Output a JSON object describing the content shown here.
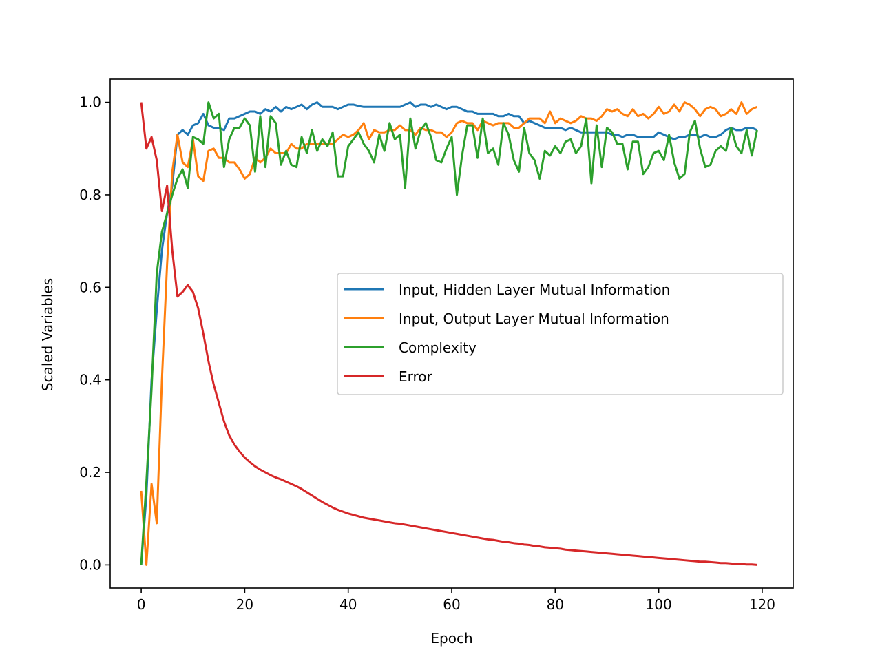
{
  "chart_data": {
    "type": "line",
    "xlabel": "Epoch",
    "ylabel": "Scaled Variables",
    "xlim": [
      -6,
      126
    ],
    "ylim": [
      -0.05,
      1.05
    ],
    "xticks": [
      0,
      20,
      40,
      60,
      80,
      100,
      120
    ],
    "yticks": [
      0.0,
      0.2,
      0.4,
      0.6,
      0.8,
      1.0
    ],
    "xtick_labels": [
      "0",
      "20",
      "40",
      "60",
      "80",
      "100",
      "120"
    ],
    "ytick_labels": [
      "0.0",
      "0.2",
      "0.4",
      "0.6",
      "0.8",
      "1.0"
    ],
    "grid": false,
    "legend_position": "center-right",
    "series": [
      {
        "name": "Input, Hidden Layer Mutual Information",
        "color": "#1f77b4",
        "values": [
          0.0,
          0.15,
          0.4,
          0.55,
          0.68,
          0.76,
          0.82,
          0.93,
          0.94,
          0.93,
          0.95,
          0.955,
          0.975,
          0.95,
          0.945,
          0.945,
          0.94,
          0.965,
          0.965,
          0.97,
          0.975,
          0.98,
          0.98,
          0.975,
          0.985,
          0.98,
          0.99,
          0.98,
          0.99,
          0.985,
          0.99,
          0.995,
          0.985,
          0.995,
          1.0,
          0.99,
          0.99,
          0.99,
          0.985,
          0.99,
          0.995,
          0.995,
          0.992,
          0.99,
          0.99,
          0.99,
          0.99,
          0.99,
          0.99,
          0.99,
          0.99,
          0.995,
          1.0,
          0.99,
          0.995,
          0.995,
          0.99,
          0.995,
          0.99,
          0.985,
          0.99,
          0.99,
          0.985,
          0.98,
          0.98,
          0.975,
          0.975,
          0.975,
          0.975,
          0.97,
          0.97,
          0.975,
          0.97,
          0.97,
          0.955,
          0.96,
          0.955,
          0.95,
          0.945,
          0.945,
          0.945,
          0.945,
          0.94,
          0.945,
          0.94,
          0.935,
          0.935,
          0.935,
          0.935,
          0.935,
          0.935,
          0.93,
          0.93,
          0.925,
          0.93,
          0.93,
          0.925,
          0.925,
          0.925,
          0.925,
          0.935,
          0.93,
          0.925,
          0.92,
          0.925,
          0.925,
          0.93,
          0.93,
          0.925,
          0.93,
          0.925,
          0.925,
          0.93,
          0.94,
          0.945,
          0.94,
          0.94,
          0.945,
          0.945,
          0.94
        ]
      },
      {
        "name": "Input, Output Layer Mutual Information",
        "color": "#ff7f0e",
        "values": [
          0.16,
          0.0,
          0.175,
          0.09,
          0.4,
          0.65,
          0.85,
          0.93,
          0.87,
          0.86,
          0.92,
          0.84,
          0.83,
          0.895,
          0.9,
          0.88,
          0.88,
          0.87,
          0.87,
          0.855,
          0.835,
          0.845,
          0.88,
          0.87,
          0.88,
          0.9,
          0.89,
          0.89,
          0.89,
          0.91,
          0.9,
          0.9,
          0.91,
          0.91,
          0.91,
          0.91,
          0.91,
          0.91,
          0.92,
          0.93,
          0.925,
          0.93,
          0.94,
          0.955,
          0.92,
          0.94,
          0.935,
          0.935,
          0.94,
          0.94,
          0.95,
          0.94,
          0.94,
          0.93,
          0.945,
          0.94,
          0.94,
          0.935,
          0.935,
          0.925,
          0.935,
          0.955,
          0.96,
          0.955,
          0.955,
          0.94,
          0.96,
          0.955,
          0.95,
          0.955,
          0.955,
          0.955,
          0.945,
          0.945,
          0.955,
          0.965,
          0.965,
          0.965,
          0.955,
          0.98,
          0.955,
          0.965,
          0.96,
          0.955,
          0.96,
          0.97,
          0.965,
          0.965,
          0.96,
          0.97,
          0.985,
          0.98,
          0.985,
          0.975,
          0.97,
          0.985,
          0.97,
          0.975,
          0.965,
          0.975,
          0.99,
          0.975,
          0.98,
          0.995,
          0.98,
          1.0,
          0.995,
          0.985,
          0.97,
          0.985,
          0.99,
          0.985,
          0.97,
          0.975,
          0.985,
          0.975,
          1.0,
          0.975,
          0.985,
          0.99
        ]
      },
      {
        "name": "Complexity",
        "color": "#2ca02c",
        "values": [
          0.0,
          0.18,
          0.38,
          0.63,
          0.72,
          0.76,
          0.8,
          0.835,
          0.855,
          0.815,
          0.925,
          0.92,
          0.91,
          1.0,
          0.965,
          0.975,
          0.86,
          0.92,
          0.945,
          0.945,
          0.965,
          0.95,
          0.85,
          0.97,
          0.86,
          0.97,
          0.955,
          0.865,
          0.895,
          0.865,
          0.86,
          0.925,
          0.89,
          0.94,
          0.895,
          0.92,
          0.905,
          0.935,
          0.84,
          0.84,
          0.905,
          0.92,
          0.935,
          0.91,
          0.895,
          0.87,
          0.93,
          0.895,
          0.955,
          0.92,
          0.93,
          0.815,
          0.965,
          0.9,
          0.94,
          0.955,
          0.925,
          0.875,
          0.87,
          0.9,
          0.925,
          0.8,
          0.885,
          0.95,
          0.95,
          0.88,
          0.965,
          0.89,
          0.9,
          0.865,
          0.955,
          0.93,
          0.875,
          0.85,
          0.945,
          0.89,
          0.875,
          0.835,
          0.895,
          0.885,
          0.905,
          0.89,
          0.915,
          0.92,
          0.89,
          0.905,
          0.965,
          0.825,
          0.95,
          0.86,
          0.945,
          0.935,
          0.91,
          0.91,
          0.855,
          0.915,
          0.915,
          0.845,
          0.86,
          0.89,
          0.895,
          0.875,
          0.93,
          0.87,
          0.835,
          0.845,
          0.935,
          0.96,
          0.9,
          0.86,
          0.865,
          0.895,
          0.905,
          0.895,
          0.945,
          0.905,
          0.89,
          0.94,
          0.885,
          0.94
        ]
      },
      {
        "name": "Error",
        "color": "#d62728",
        "values": [
          1.0,
          0.9,
          0.925,
          0.875,
          0.765,
          0.82,
          0.68,
          0.58,
          0.59,
          0.605,
          0.59,
          0.555,
          0.5,
          0.44,
          0.39,
          0.35,
          0.31,
          0.28,
          0.26,
          0.245,
          0.232,
          0.222,
          0.213,
          0.206,
          0.2,
          0.194,
          0.189,
          0.185,
          0.18,
          0.175,
          0.17,
          0.164,
          0.157,
          0.15,
          0.143,
          0.136,
          0.13,
          0.124,
          0.119,
          0.115,
          0.111,
          0.108,
          0.105,
          0.102,
          0.1,
          0.098,
          0.096,
          0.094,
          0.092,
          0.09,
          0.089,
          0.087,
          0.085,
          0.083,
          0.081,
          0.079,
          0.077,
          0.075,
          0.073,
          0.071,
          0.069,
          0.067,
          0.065,
          0.063,
          0.061,
          0.059,
          0.057,
          0.055,
          0.054,
          0.052,
          0.05,
          0.049,
          0.047,
          0.046,
          0.044,
          0.043,
          0.041,
          0.04,
          0.038,
          0.037,
          0.036,
          0.035,
          0.033,
          0.032,
          0.031,
          0.03,
          0.029,
          0.028,
          0.027,
          0.026,
          0.025,
          0.024,
          0.023,
          0.022,
          0.021,
          0.02,
          0.019,
          0.018,
          0.017,
          0.016,
          0.015,
          0.014,
          0.013,
          0.012,
          0.011,
          0.01,
          0.009,
          0.008,
          0.007,
          0.007,
          0.006,
          0.005,
          0.004,
          0.004,
          0.003,
          0.002,
          0.002,
          0.001,
          0.001,
          0.0
        ]
      }
    ]
  }
}
